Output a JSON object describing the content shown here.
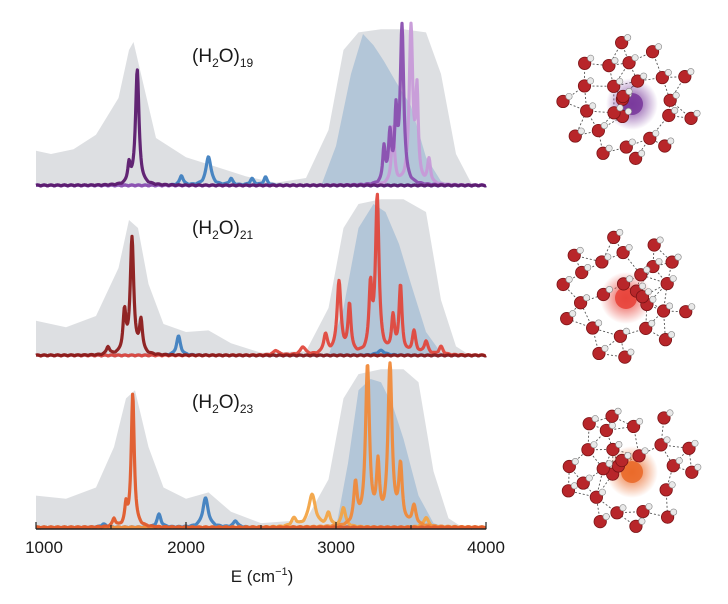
{
  "chart_data": {
    "type": "line",
    "xlabel": "E (cm⁻¹)",
    "xlim": [
      1000,
      4000
    ],
    "x_ticks": [
      1000,
      2000,
      3000,
      4000
    ],
    "grid": false,
    "panels": [
      {
        "label_main": "(H",
        "label_sub1": "2",
        "label_mid": "O)",
        "label_sub2": "19",
        "colors": {
          "dark": "#5b1a6e",
          "mid": "#8a4fb0",
          "light": "#c79ad8",
          "blue": "#3f7fc0"
        },
        "broad_gray": [
          [
            1000,
            0.22
          ],
          [
            1100,
            0.2
          ],
          [
            1250,
            0.23
          ],
          [
            1400,
            0.32
          ],
          [
            1550,
            0.55
          ],
          [
            1620,
            0.85
          ],
          [
            1650,
            0.9
          ],
          [
            1700,
            0.7
          ],
          [
            1800,
            0.3
          ],
          [
            2000,
            0.18
          ],
          [
            2200,
            0.12
          ],
          [
            2400,
            0.06
          ],
          [
            2600,
            0.02
          ],
          [
            2800,
            0.05
          ],
          [
            2950,
            0.35
          ],
          [
            3050,
            0.85
          ],
          [
            3150,
            0.96
          ],
          [
            3300,
            0.98
          ],
          [
            3450,
            0.98
          ],
          [
            3600,
            0.96
          ],
          [
            3700,
            0.7
          ],
          [
            3800,
            0.2
          ],
          [
            3900,
            0.02
          ],
          [
            4000,
            0.0
          ]
        ],
        "broad_blue": [
          [
            2900,
            0.0
          ],
          [
            3000,
            0.25
          ],
          [
            3100,
            0.7
          ],
          [
            3180,
            0.95
          ],
          [
            3250,
            0.88
          ],
          [
            3320,
            0.78
          ],
          [
            3400,
            0.65
          ],
          [
            3500,
            0.5
          ],
          [
            3600,
            0.18
          ],
          [
            3700,
            0.03
          ],
          [
            3800,
            0.0
          ]
        ],
        "peaks_dark": [
          {
            "x": 1675,
            "h": 0.72,
            "w": 14
          },
          {
            "x": 1620,
            "h": 0.12,
            "w": 10
          }
        ],
        "peaks_mid": [
          {
            "x": 3440,
            "h": 0.98,
            "w": 14
          },
          {
            "x": 3400,
            "h": 0.4,
            "w": 10
          },
          {
            "x": 3360,
            "h": 0.3,
            "w": 12
          },
          {
            "x": 3320,
            "h": 0.22,
            "w": 10
          }
        ],
        "peaks_light": [
          {
            "x": 3500,
            "h": 0.98,
            "w": 14
          },
          {
            "x": 3540,
            "h": 0.55,
            "w": 10
          },
          {
            "x": 3620,
            "h": 0.15,
            "w": 12
          },
          {
            "x": 3380,
            "h": 0.35,
            "w": 12
          }
        ],
        "peaks_blue": [
          {
            "x": 2150,
            "h": 0.18,
            "w": 20
          },
          {
            "x": 1970,
            "h": 0.06,
            "w": 14
          },
          {
            "x": 2440,
            "h": 0.04,
            "w": 16
          },
          {
            "x": 2530,
            "h": 0.05,
            "w": 14
          },
          {
            "x": 2300,
            "h": 0.04,
            "w": 14
          }
        ]
      },
      {
        "label_main": "(H",
        "label_sub1": "2",
        "label_mid": "O)",
        "label_sub2": "21",
        "colors": {
          "dark": "#8b1a1a",
          "mid": "#e0483d",
          "light": "#e0483d",
          "blue": "#3f7fc0"
        },
        "broad_gray": [
          [
            1000,
            0.22
          ],
          [
            1200,
            0.18
          ],
          [
            1400,
            0.25
          ],
          [
            1550,
            0.55
          ],
          [
            1620,
            0.85
          ],
          [
            1680,
            0.8
          ],
          [
            1750,
            0.45
          ],
          [
            1850,
            0.2
          ],
          [
            2000,
            0.15
          ],
          [
            2150,
            0.16
          ],
          [
            2300,
            0.08
          ],
          [
            2500,
            0.02
          ],
          [
            2800,
            0.03
          ],
          [
            2950,
            0.3
          ],
          [
            3050,
            0.8
          ],
          [
            3150,
            0.95
          ],
          [
            3300,
            0.98
          ],
          [
            3450,
            0.98
          ],
          [
            3600,
            0.9
          ],
          [
            3700,
            0.35
          ],
          [
            3800,
            0.06
          ],
          [
            3900,
            0.0
          ],
          [
            4000,
            0.0
          ]
        ],
        "broad_blue": [
          [
            2950,
            0.0
          ],
          [
            3050,
            0.3
          ],
          [
            3150,
            0.8
          ],
          [
            3250,
            0.95
          ],
          [
            3330,
            0.9
          ],
          [
            3420,
            0.7
          ],
          [
            3500,
            0.45
          ],
          [
            3600,
            0.15
          ],
          [
            3700,
            0.02
          ],
          [
            3800,
            0.0
          ]
        ],
        "peaks_dark": [
          {
            "x": 1640,
            "h": 0.72,
            "w": 14
          },
          {
            "x": 1590,
            "h": 0.25,
            "w": 12
          },
          {
            "x": 1700,
            "h": 0.2,
            "w": 12
          },
          {
            "x": 1480,
            "h": 0.05,
            "w": 12
          }
        ],
        "peaks_mid": [
          {
            "x": 3275,
            "h": 0.98,
            "w": 14
          },
          {
            "x": 3230,
            "h": 0.4,
            "w": 12
          },
          {
            "x": 3020,
            "h": 0.45,
            "w": 16
          },
          {
            "x": 3090,
            "h": 0.3,
            "w": 12
          },
          {
            "x": 2930,
            "h": 0.12,
            "w": 16
          },
          {
            "x": 2780,
            "h": 0.05,
            "w": 20
          },
          {
            "x": 3430,
            "h": 0.42,
            "w": 12
          },
          {
            "x": 3380,
            "h": 0.22,
            "w": 12
          },
          {
            "x": 3520,
            "h": 0.14,
            "w": 14
          },
          {
            "x": 3600,
            "h": 0.08,
            "w": 16
          },
          {
            "x": 3700,
            "h": 0.05,
            "w": 16
          },
          {
            "x": 2600,
            "h": 0.03,
            "w": 20
          }
        ],
        "peaks_light": [],
        "peaks_blue": [
          {
            "x": 1950,
            "h": 0.12,
            "w": 16
          },
          {
            "x": 3300,
            "h": 0.03,
            "w": 30
          }
        ]
      },
      {
        "label_main": "(H",
        "label_sub1": "2",
        "label_mid": "O)",
        "label_sub2": "23",
        "colors": {
          "dark": "#e05a2a",
          "mid": "#f08a3a",
          "light": "#f2a446",
          "blue": "#3f7fc0"
        },
        "broad_gray": [
          [
            1000,
            0.2
          ],
          [
            1200,
            0.18
          ],
          [
            1400,
            0.25
          ],
          [
            1520,
            0.5
          ],
          [
            1600,
            0.8
          ],
          [
            1660,
            0.85
          ],
          [
            1750,
            0.5
          ],
          [
            1850,
            0.25
          ],
          [
            2000,
            0.18
          ],
          [
            2150,
            0.22
          ],
          [
            2300,
            0.1
          ],
          [
            2500,
            0.03
          ],
          [
            2800,
            0.05
          ],
          [
            2950,
            0.3
          ],
          [
            3050,
            0.8
          ],
          [
            3150,
            0.95
          ],
          [
            3300,
            0.98
          ],
          [
            3450,
            0.98
          ],
          [
            3550,
            0.9
          ],
          [
            3650,
            0.35
          ],
          [
            3750,
            0.06
          ],
          [
            3850,
            0.0
          ],
          [
            4000,
            0.0
          ]
        ],
        "broad_blue": [
          [
            3000,
            0.0
          ],
          [
            3080,
            0.4
          ],
          [
            3150,
            0.85
          ],
          [
            3230,
            0.92
          ],
          [
            3300,
            0.9
          ],
          [
            3380,
            0.75
          ],
          [
            3450,
            0.55
          ],
          [
            3550,
            0.2
          ],
          [
            3650,
            0.03
          ],
          [
            3750,
            0.0
          ]
        ],
        "peaks_dark": [
          {
            "x": 1645,
            "h": 0.82,
            "w": 12
          },
          {
            "x": 1600,
            "h": 0.12,
            "w": 10
          },
          {
            "x": 1520,
            "h": 0.05,
            "w": 12
          }
        ],
        "peaks_mid": [
          {
            "x": 3360,
            "h": 1.0,
            "w": 16
          },
          {
            "x": 3210,
            "h": 0.98,
            "w": 16
          },
          {
            "x": 3280,
            "h": 0.35,
            "w": 12
          },
          {
            "x": 3430,
            "h": 0.35,
            "w": 14
          },
          {
            "x": 3130,
            "h": 0.25,
            "w": 14
          },
          {
            "x": 3520,
            "h": 0.12,
            "w": 16
          }
        ],
        "peaks_light": [
          {
            "x": 2840,
            "h": 0.2,
            "w": 28
          },
          {
            "x": 2950,
            "h": 0.08,
            "w": 16
          },
          {
            "x": 3050,
            "h": 0.12,
            "w": 16
          },
          {
            "x": 2720,
            "h": 0.05,
            "w": 20
          },
          {
            "x": 3600,
            "h": 0.06,
            "w": 20
          }
        ],
        "peaks_blue": [
          {
            "x": 2130,
            "h": 0.18,
            "w": 22
          },
          {
            "x": 1820,
            "h": 0.08,
            "w": 16
          },
          {
            "x": 2330,
            "h": 0.04,
            "w": 16
          },
          {
            "x": 1450,
            "h": 0.02,
            "w": 20
          }
        ]
      }
    ]
  }
}
